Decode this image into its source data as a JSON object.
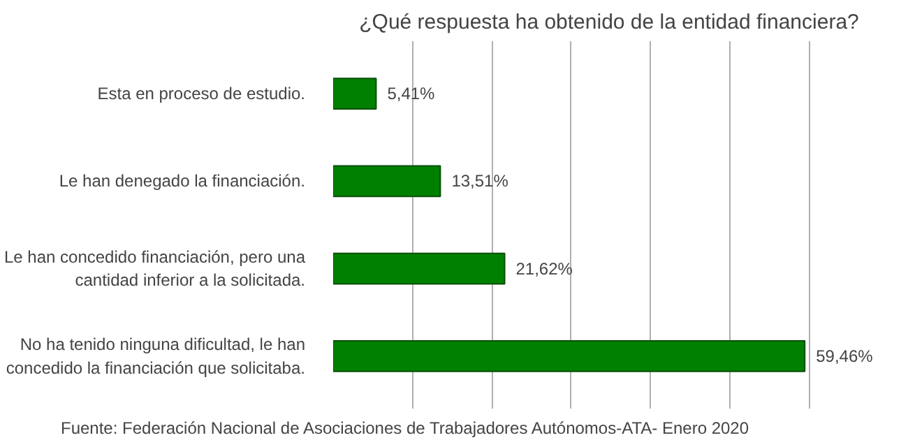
{
  "chart_data": {
    "type": "bar",
    "orientation": "horizontal",
    "title": "¿Qué respuesta ha obtenido de la entidad financiera?",
    "categories": [
      "Esta en proceso de estudio.",
      "Le han denegado la financiación.",
      "Le han concedido financiación, pero una cantidad inferior a la solicitada.",
      "No ha tenido ninguna dificultad, le han concedido la financiación que solicitaba."
    ],
    "values": [
      5.41,
      13.51,
      21.62,
      59.46
    ],
    "value_labels": [
      "5,41%",
      "13,51%",
      "21,62%",
      "59,46%"
    ],
    "color": "#008000",
    "tick_labels": "y",
    "grid": "x",
    "annotations": [
      "Fuente: Federación Nacional de Asociaciones de Trabajadores Autónomos-ATA- Enero 2020"
    ]
  }
}
